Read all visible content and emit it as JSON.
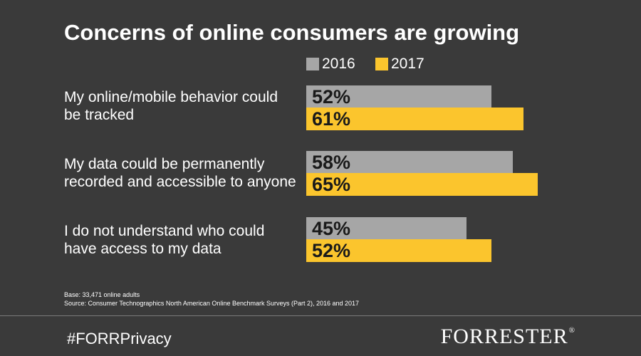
{
  "chart_data": {
    "type": "bar",
    "orientation": "horizontal",
    "title": "Concerns of online consumers are growing",
    "categories": [
      {
        "lines": [
          "My online/mobile behavior could",
          "be tracked"
        ]
      },
      {
        "lines": [
          "My data could be permanently",
          "recorded and accessible to anyone"
        ]
      },
      {
        "lines": [
          "I do not understand who could",
          "have access to my data"
        ]
      }
    ],
    "series": [
      {
        "name": "2016",
        "color": "#a6a6a6",
        "values": [
          52,
          58,
          45
        ],
        "labels": [
          "52%",
          "58%",
          "45%"
        ]
      },
      {
        "name": "2017",
        "color": "#fbc52d",
        "values": [
          61,
          65,
          52
        ],
        "labels": [
          "61%",
          "65%",
          "52%"
        ]
      }
    ],
    "xlim": [
      0,
      100
    ],
    "gridlines": false,
    "legend_position": "top"
  },
  "footnote": {
    "base": "Base: 33,471 online adults",
    "source": "Source: Consumer Technographics North American Online Benchmark Surveys (Part 2), 2016 and 2017"
  },
  "footer": {
    "hashtag": "#FORRPrivacy",
    "brand": "FORRESTER",
    "brand_mark": "®"
  }
}
